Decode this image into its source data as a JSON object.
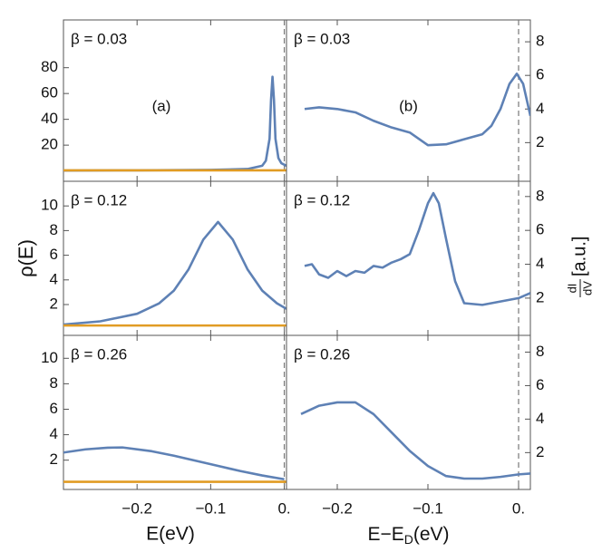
{
  "chart_data": [
    {
      "type": "line",
      "title": "β = 0.03",
      "annotation": "(a)",
      "vline": 0,
      "xlim": [
        -0.3,
        0.003
      ],
      "xticks": [
        -0.2,
        -0.1,
        0
      ],
      "ylim": [
        -8,
        117
      ],
      "yticks": [
        20,
        40,
        60,
        80
      ],
      "series": [
        {
          "color": "#5e81b5",
          "x": [
            -0.3,
            -0.2,
            -0.1,
            -0.05,
            -0.03,
            -0.025,
            -0.02,
            -0.018,
            -0.016,
            -0.014,
            -0.012,
            -0.008,
            -0.004,
            0.003
          ],
          "values": [
            0.3,
            0.5,
            0.8,
            1.5,
            4,
            8,
            25,
            55,
            73,
            55,
            25,
            10,
            6,
            4
          ]
        },
        {
          "color": "#e19c24",
          "x": [
            -0.3,
            0.003
          ],
          "values": [
            0.5,
            0.5
          ]
        }
      ]
    },
    {
      "type": "line",
      "title": "β = 0.12",
      "vline": 0,
      "ylabel": "ρ(E)",
      "xlim": [
        -0.3,
        0.003
      ],
      "xticks": [
        -0.2,
        -0.1,
        0
      ],
      "ylim": [
        -0.5,
        12
      ],
      "yticks": [
        2,
        4,
        6,
        8,
        10
      ],
      "series": [
        {
          "color": "#5e81b5",
          "x": [
            -0.3,
            -0.25,
            -0.2,
            -0.17,
            -0.15,
            -0.13,
            -0.11,
            -0.09,
            -0.07,
            -0.05,
            -0.03,
            -0.01,
            0.003
          ],
          "values": [
            0.38,
            0.64,
            1.25,
            2.1,
            3.13,
            4.86,
            7.27,
            8.7,
            7.27,
            4.86,
            3.13,
            2.1,
            1.65
          ]
        },
        {
          "color": "#e19c24",
          "x": [
            -0.3,
            0.003
          ],
          "values": [
            0.3,
            0.3
          ]
        }
      ]
    },
    {
      "type": "line",
      "title": "β = 0.26",
      "vline": 0,
      "xlabel": "E(eV)",
      "xlim": [
        -0.3,
        0.003
      ],
      "xticks": [
        {
          "value": -0.2,
          "label": "−0.2"
        },
        {
          "value": -0.1,
          "label": "−0.1"
        },
        {
          "value": 0,
          "label": "0."
        }
      ],
      "ylim": [
        -0.3,
        11.8
      ],
      "yticks": [
        2,
        4,
        6,
        8,
        10
      ],
      "series": [
        {
          "color": "#5e81b5",
          "x": [
            -0.3,
            -0.27,
            -0.24,
            -0.22,
            -0.18,
            -0.15,
            -0.12,
            -0.09,
            -0.06,
            -0.03,
            0
          ],
          "values": [
            2.6,
            2.85,
            2.98,
            3.0,
            2.7,
            2.35,
            1.95,
            1.55,
            1.15,
            0.8,
            0.5
          ]
        },
        {
          "color": "#e19c24",
          "x": [
            -0.3,
            0.003
          ],
          "values": [
            0.3,
            0.3
          ]
        }
      ]
    },
    {
      "type": "line",
      "title": "β = 0.03",
      "annotation": "(b)",
      "vline": 0,
      "xlim": [
        -0.256,
        0.013
      ],
      "xticks": [
        -0.2,
        -0.1,
        0
      ],
      "ylim": [
        -0.3,
        9.3
      ],
      "yticks": [
        2,
        4,
        6,
        8
      ],
      "series": [
        {
          "color": "#5e81b5",
          "x": [
            -0.236,
            -0.22,
            -0.2,
            -0.18,
            -0.16,
            -0.14,
            -0.12,
            -0.1,
            -0.08,
            -0.06,
            -0.04,
            -0.03,
            -0.02,
            -0.01,
            -0.002,
            0.005,
            0.013
          ],
          "values": [
            4.0,
            4.1,
            4.0,
            3.8,
            3.3,
            2.9,
            2.6,
            1.85,
            1.9,
            2.2,
            2.5,
            3.0,
            4.0,
            5.5,
            6.1,
            5.5,
            3.6
          ]
        }
      ]
    },
    {
      "type": "line",
      "title": "β = 0.12",
      "vline": 0,
      "ylabel": {
        "numerator": "dI",
        "denominator": "dV",
        "unit": "[a.u.]"
      },
      "xlim": [
        -0.256,
        0.013
      ],
      "xticks": [
        -0.2,
        -0.1,
        0
      ],
      "ylim": [
        -0.2,
        8.9
      ],
      "yticks": [
        2,
        4,
        6,
        8
      ],
      "series": [
        {
          "color": "#5e81b5",
          "x": [
            -0.236,
            -0.228,
            -0.22,
            -0.21,
            -0.2,
            -0.19,
            -0.18,
            -0.17,
            -0.16,
            -0.15,
            -0.14,
            -0.13,
            -0.12,
            -0.11,
            -0.1,
            -0.094,
            -0.088,
            -0.08,
            -0.07,
            -0.06,
            -0.04,
            -0.02,
            0,
            0.013
          ],
          "values": [
            3.9,
            4.0,
            3.4,
            3.2,
            3.6,
            3.3,
            3.6,
            3.5,
            3.9,
            3.8,
            4.1,
            4.3,
            4.6,
            6.0,
            7.6,
            8.2,
            7.6,
            5.5,
            3.0,
            1.7,
            1.6,
            1.8,
            2.0,
            2.3
          ]
        }
      ]
    },
    {
      "type": "line",
      "title": "β = 0.26",
      "vline": 0,
      "xlabel": {
        "text": "E−E",
        "subscript": "D",
        "suffix": "(eV)"
      },
      "xlim": [
        -0.256,
        0.013
      ],
      "xticks": [
        {
          "value": -0.2,
          "label": "−0.2"
        },
        {
          "value": -0.1,
          "label": "−0.1"
        },
        {
          "value": 0,
          "label": "0."
        }
      ],
      "ylim": [
        -0.2,
        9.0
      ],
      "yticks": [
        2,
        4,
        6,
        8
      ],
      "series": [
        {
          "color": "#5e81b5",
          "x": [
            -0.24,
            -0.22,
            -0.2,
            -0.18,
            -0.16,
            -0.14,
            -0.12,
            -0.1,
            -0.08,
            -0.06,
            -0.04,
            -0.02,
            0,
            0.013
          ],
          "values": [
            4.3,
            4.8,
            5.0,
            5.0,
            4.3,
            3.2,
            2.1,
            1.2,
            0.6,
            0.45,
            0.45,
            0.55,
            0.7,
            0.75
          ]
        }
      ]
    }
  ]
}
